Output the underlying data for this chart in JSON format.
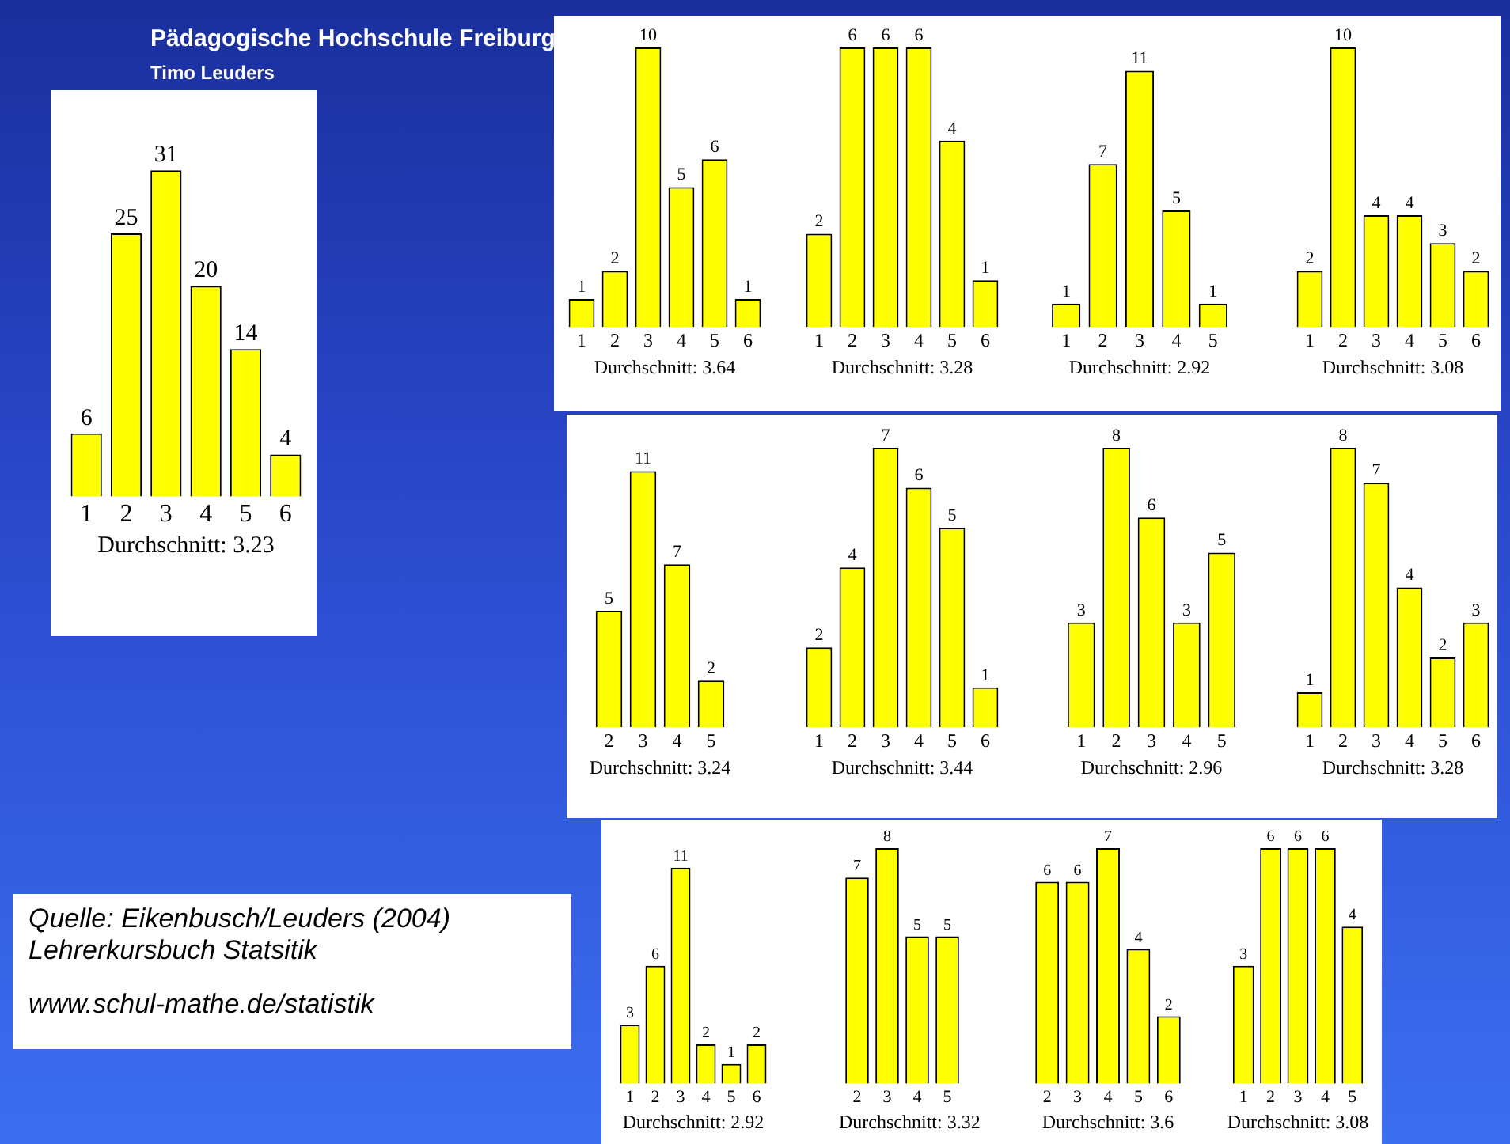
{
  "chart_data": [
    {
      "type": "bar",
      "categories": [
        "1",
        "2",
        "3",
        "4",
        "5",
        "6"
      ],
      "values": [
        6,
        25,
        31,
        20,
        14,
        4
      ],
      "color": "#ffff00",
      "data_labels": true,
      "annotations": [
        "Durchschnitt: 3.23"
      ]
    },
    {
      "type": "bar",
      "categories": [
        "1",
        "2",
        "3",
        "4",
        "5",
        "6"
      ],
      "values": [
        1,
        2,
        10,
        5,
        6,
        1
      ],
      "color": "#ffff00",
      "data_labels": true,
      "annotations": [
        "Durchschnitt: 3.64"
      ]
    },
    {
      "type": "bar",
      "categories": [
        "1",
        "2",
        "3",
        "4",
        "5",
        "6"
      ],
      "values": [
        2,
        6,
        6,
        6,
        4,
        1
      ],
      "color": "#ffff00",
      "data_labels": true,
      "annotations": [
        "Durchschnitt: 3.28"
      ]
    },
    {
      "type": "bar",
      "categories": [
        "1",
        "2",
        "3",
        "4",
        "5"
      ],
      "values": [
        1,
        7,
        11,
        5,
        1
      ],
      "color": "#ffff00",
      "data_labels": true,
      "annotations": [
        "Durchschnitt: 2.92"
      ]
    },
    {
      "type": "bar",
      "categories": [
        "1",
        "2",
        "3",
        "4",
        "5",
        "6"
      ],
      "values": [
        2,
        10,
        4,
        4,
        3,
        2
      ],
      "color": "#ffff00",
      "data_labels": true,
      "annotations": [
        "Durchschnitt: 3.08"
      ]
    },
    {
      "type": "bar",
      "categories": [
        "2",
        "3",
        "4",
        "5"
      ],
      "values": [
        5,
        11,
        7,
        2
      ],
      "color": "#ffff00",
      "data_labels": true,
      "annotations": [
        "Durchschnitt: 3.24"
      ]
    },
    {
      "type": "bar",
      "categories": [
        "1",
        "2",
        "3",
        "4",
        "5",
        "6"
      ],
      "values": [
        2,
        4,
        7,
        6,
        5,
        1
      ],
      "color": "#ffff00",
      "data_labels": true,
      "annotations": [
        "Durchschnitt: 3.44"
      ]
    },
    {
      "type": "bar",
      "categories": [
        "1",
        "2",
        "3",
        "4",
        "5"
      ],
      "values": [
        3,
        8,
        6,
        3,
        5
      ],
      "color": "#ffff00",
      "data_labels": true,
      "annotations": [
        "Durchschnitt: 2.96"
      ]
    },
    {
      "type": "bar",
      "categories": [
        "1",
        "2",
        "3",
        "4",
        "5",
        "6"
      ],
      "values": [
        1,
        8,
        7,
        4,
        2,
        3
      ],
      "color": "#ffff00",
      "data_labels": true,
      "annotations": [
        "Durchschnitt: 3.28"
      ]
    },
    {
      "type": "bar",
      "categories": [
        "1",
        "2",
        "3",
        "4",
        "5",
        "6"
      ],
      "values": [
        3,
        6,
        11,
        2,
        1,
        2
      ],
      "color": "#ffff00",
      "data_labels": true,
      "annotations": [
        "Durchschnitt: 2.92"
      ]
    },
    {
      "type": "bar",
      "categories": [
        "2",
        "3",
        "4",
        "5"
      ],
      "values": [
        7,
        8,
        5,
        5
      ],
      "color": "#ffff00",
      "data_labels": true,
      "annotations": [
        "Durchschnitt: 3.32"
      ]
    },
    {
      "type": "bar",
      "categories": [
        "2",
        "3",
        "4",
        "5",
        "6"
      ],
      "values": [
        6,
        6,
        7,
        4,
        2
      ],
      "color": "#ffff00",
      "data_labels": true,
      "annotations": [
        "Durchschnitt: 3.6"
      ]
    },
    {
      "type": "bar",
      "categories": [
        "1",
        "2",
        "3",
        "4",
        "5"
      ],
      "values": [
        3,
        6,
        6,
        6,
        4
      ],
      "color": "#ffff00",
      "data_labels": true,
      "annotations": [
        "Durchschnitt: 3.08"
      ]
    },
    {
      "type": "other",
      "title": "Pädagogische Hochschule Freiburg",
      "subtitle": "Timo Leuders",
      "annotations": [
        "Quelle: Eikenbusch/Leuders (2004)",
        "Lehrerkursbuch Statsitik",
        "www.schul-mathe.de/statistik"
      ]
    }
  ]
}
